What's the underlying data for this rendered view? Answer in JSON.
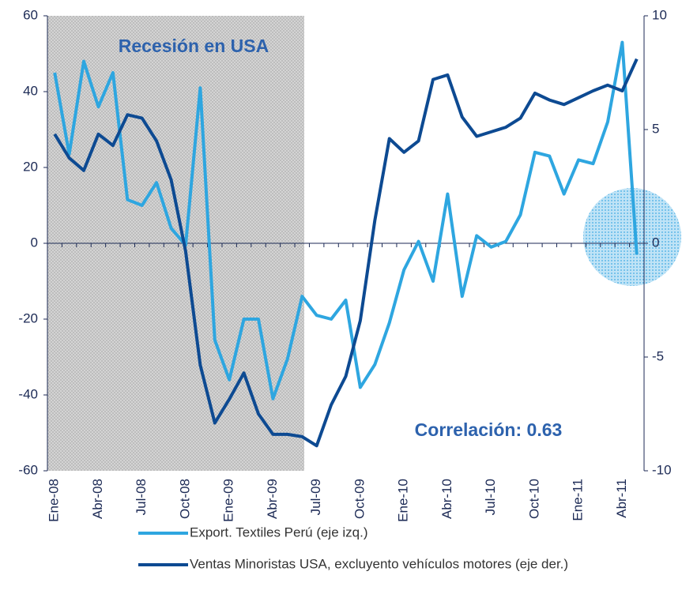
{
  "chart_data": {
    "type": "line",
    "annotations": [
      "Recesión en USA",
      "Correlación: 0.63"
    ],
    "categories": [
      "Ene-08",
      null,
      null,
      "Abr-08",
      null,
      null,
      "Jul-08",
      null,
      null,
      "Oct-08",
      null,
      null,
      "Ene-09",
      null,
      null,
      "Abr-09",
      null,
      null,
      "Jul-09",
      null,
      null,
      "Oct-09",
      null,
      null,
      "Ene-10",
      null,
      null,
      "Abr-10",
      null,
      null,
      "Jul-10",
      null,
      null,
      "Oct-10",
      null,
      null,
      "Ene-11",
      null,
      null,
      "Abr-11",
      null
    ],
    "series": [
      {
        "name": "Export. Textiles Perú (eje izq.)",
        "color": "#2ea6e0",
        "values": [
          45,
          23.5,
          48,
          36,
          45,
          11.5,
          10,
          16,
          4,
          -0.5,
          41,
          -25.5,
          -36,
          -20,
          -20,
          -41,
          -30.5,
          -14,
          -19,
          -20,
          -15,
          -38,
          -32,
          -21,
          -7,
          0.5,
          -10,
          13,
          -14,
          2,
          -1,
          0.5,
          7.5,
          24,
          23,
          13,
          22,
          21,
          32,
          53,
          -3
        ]
      },
      {
        "name": "Ventas Minoristas USA, excluyento vehículos motores (eje der.)",
        "color": "#0d4a92",
        "axis": "y2",
        "values": [
          4.8,
          3.75,
          3.2,
          4.8,
          4.3,
          5.65,
          5.5,
          4.5,
          2.8,
          -0.35,
          -5.35,
          -7.9,
          -6.85,
          -5.7,
          -7.5,
          -8.4,
          -8.4,
          -8.5,
          -8.9,
          -7.1,
          -5.85,
          -3.4,
          1.0,
          4.6,
          4.0,
          4.5,
          7.2,
          7.4,
          5.55,
          4.7,
          4.9,
          5.1,
          5.5,
          6.6,
          6.3,
          6.1,
          6.4,
          6.7,
          6.95,
          6.7,
          8.1
        ]
      }
    ],
    "ylim": [
      -60,
      60
    ],
    "yticks": [
      60,
      40,
      20,
      0,
      -20,
      -40,
      -60
    ],
    "y2lim": [
      -10,
      10
    ],
    "y2ticks": [
      10,
      5,
      0,
      -5,
      -10
    ],
    "legend": "bottom"
  }
}
